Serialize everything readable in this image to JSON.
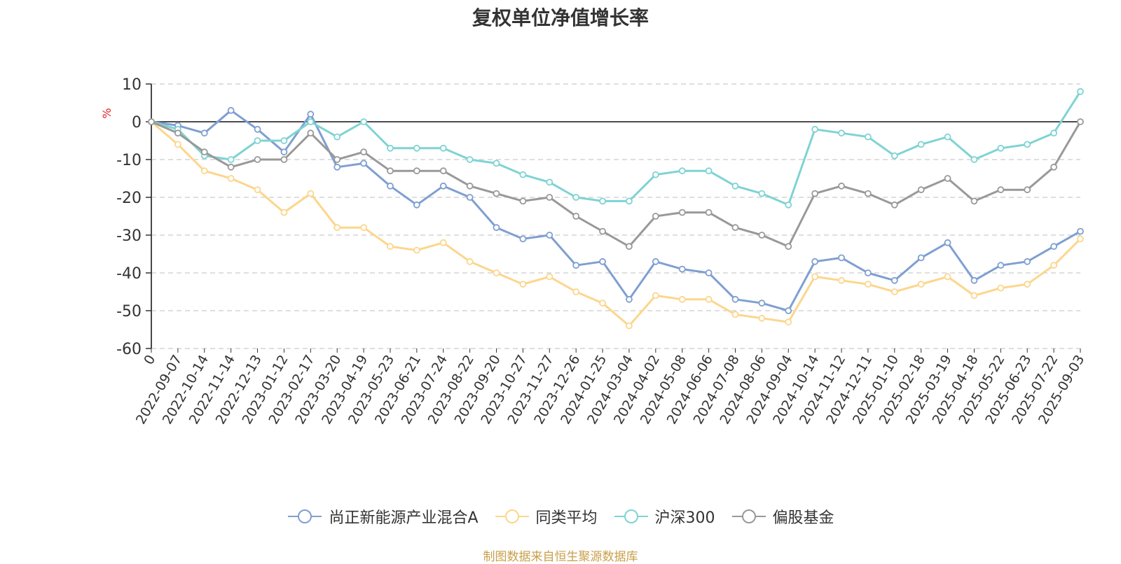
{
  "source_note": "制图数据来自恒生聚源数据库",
  "chart_data": {
    "type": "line",
    "title": "复权单位净值增长率",
    "ylabel": "%",
    "ylim": [
      -60,
      10
    ],
    "yticks": [
      10,
      0,
      -10,
      -20,
      -30,
      -40,
      -50,
      -60
    ],
    "grid": true,
    "legend_position": "bottom",
    "x": [
      "0",
      "2022-09-07",
      "2022-10-14",
      "2022-11-14",
      "2022-12-13",
      "2023-01-12",
      "2023-02-17",
      "2023-03-20",
      "2023-04-19",
      "2023-05-23",
      "2023-06-21",
      "2023-07-24",
      "2023-08-22",
      "2023-09-20",
      "2023-10-27",
      "2023-11-27",
      "2023-12-26",
      "2024-01-25",
      "2024-03-04",
      "2024-04-02",
      "2024-05-08",
      "2024-06-06",
      "2024-07-08",
      "2024-08-06",
      "2024-09-04",
      "2024-10-14",
      "2024-11-12",
      "2024-12-11",
      "2025-01-10",
      "2025-02-18",
      "2025-03-19",
      "2025-04-18",
      "2025-05-22",
      "2025-06-23",
      "2025-07-22",
      "2025-09-03"
    ],
    "series": [
      {
        "name": "尚正新能源产业混合A",
        "color": "#7f9fd1",
        "values": [
          0,
          -1,
          -3,
          3,
          -2,
          -8,
          2,
          -12,
          -11,
          -17,
          -22,
          -17,
          -20,
          -28,
          -31,
          -30,
          -38,
          -37,
          -47,
          -37,
          -39,
          -40,
          -47,
          -48,
          -50,
          -37,
          -36,
          -40,
          -42,
          -36,
          -32,
          -42,
          -38,
          -37,
          -33,
          -29
        ]
      },
      {
        "name": "同类平均",
        "color": "#fcd68d",
        "values": [
          0,
          -6,
          -13,
          -15,
          -18,
          -24,
          -19,
          -28,
          -28,
          -33,
          -34,
          -32,
          -37,
          -40,
          -43,
          -41,
          -45,
          -48,
          -54,
          -46,
          -47,
          -47,
          -51,
          -52,
          -53,
          -41,
          -42,
          -43,
          -45,
          -43,
          -41,
          -46,
          -44,
          -43,
          -38,
          -31
        ]
      },
      {
        "name": "沪深300",
        "color": "#7fd3d3",
        "values": [
          0,
          -2,
          -9,
          -10,
          -5,
          -5,
          0,
          -4,
          0,
          -7,
          -7,
          -7,
          -10,
          -11,
          -14,
          -16,
          -20,
          -21,
          -21,
          -14,
          -13,
          -13,
          -17,
          -19,
          -22,
          -2,
          -3,
          -4,
          -9,
          -6,
          -4,
          -10,
          -7,
          -6,
          -3,
          8
        ]
      },
      {
        "name": "偏股基金",
        "color": "#999999",
        "values": [
          0,
          -3,
          -8,
          -12,
          -10,
          -10,
          -3,
          -10,
          -8,
          -13,
          -13,
          -13,
          -17,
          -19,
          -21,
          -20,
          -25,
          -29,
          -33,
          -25,
          -24,
          -24,
          -28,
          -30,
          -33,
          -19,
          -17,
          -19,
          -22,
          -18,
          -15,
          -21,
          -18,
          -18,
          -12,
          0
        ]
      }
    ]
  }
}
